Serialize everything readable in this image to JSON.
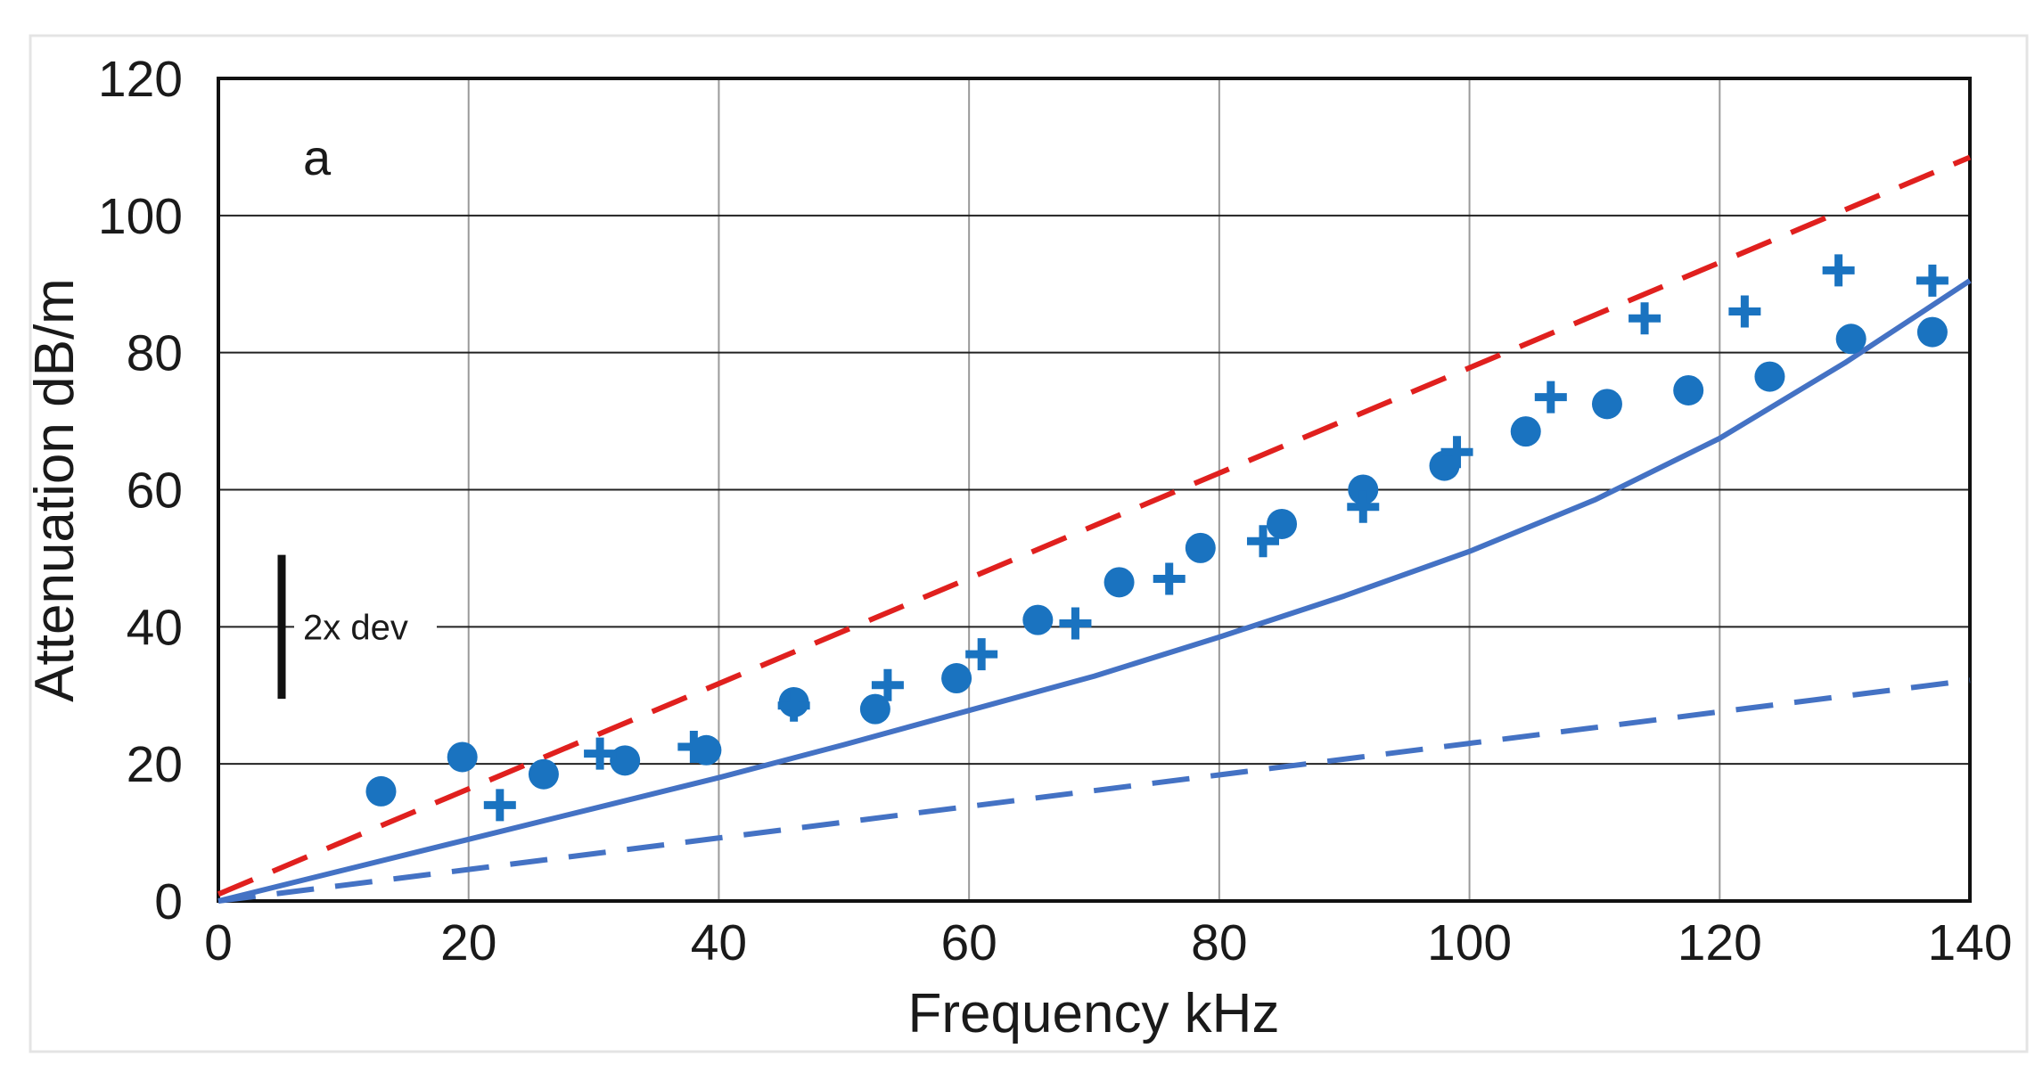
{
  "chart_data": {
    "type": "scatter",
    "panel_label": "a",
    "xlabel": "Frequency  kHz",
    "ylabel": "Attenuation  dB/m",
    "xlim": [
      0,
      140
    ],
    "ylim": [
      0,
      120
    ],
    "xticks": [
      0,
      20,
      40,
      60,
      80,
      100,
      120,
      140
    ],
    "yticks": [
      0,
      20,
      40,
      60,
      80,
      100,
      120
    ],
    "grid": true,
    "annotation": {
      "label": "2x dev",
      "y_center": 40,
      "y_span": 21
    },
    "colors": {
      "markers": "#1a73c0",
      "red_dashed": "#e0201e",
      "blue_line": "#4472c4",
      "grid": "#9a9a9a"
    },
    "series": [
      {
        "name": "circles",
        "kind": "scatter",
        "marker": "circle",
        "x": [
          13,
          19.5,
          26,
          32.5,
          39,
          46,
          52.5,
          59,
          65.5,
          72,
          78.5,
          85,
          91.5,
          98,
          104.5,
          111,
          117.5,
          124,
          130.5,
          137
        ],
        "y": [
          16,
          21,
          18.5,
          20.5,
          22,
          29,
          28,
          32.5,
          41,
          46.5,
          51.5,
          55,
          60,
          63.5,
          68.5,
          72.5,
          74.5,
          76.5,
          82,
          83
        ]
      },
      {
        "name": "crosses",
        "kind": "scatter",
        "marker": "plus",
        "x": [
          22.5,
          30.5,
          38,
          46,
          53.5,
          61,
          68.5,
          76,
          83.5,
          91.5,
          99,
          106.5,
          114,
          122,
          129.5,
          137
        ],
        "y": [
          14,
          21.5,
          22.5,
          28.5,
          31.5,
          36,
          40.5,
          47,
          52.5,
          57.5,
          65.5,
          73.5,
          85,
          86,
          92,
          90.5
        ]
      },
      {
        "name": "red-dashed-line",
        "kind": "line",
        "style": "dashed",
        "x": [
          0,
          140
        ],
        "y": [
          1,
          108.5
        ]
      },
      {
        "name": "blue-solid-line",
        "kind": "line",
        "style": "solid",
        "x": [
          0,
          10,
          20,
          30,
          40,
          50,
          60,
          70,
          80,
          90,
          100,
          110,
          120,
          130,
          140
        ],
        "y": [
          0,
          4.5,
          9,
          13.5,
          18,
          22.8,
          27.8,
          32.8,
          38.5,
          44.5,
          51,
          58.5,
          67.5,
          78.5,
          90.5
        ]
      },
      {
        "name": "blue-dashed-line",
        "kind": "line",
        "style": "dashed",
        "x": [
          0,
          20,
          40,
          60,
          80,
          100,
          120,
          140
        ],
        "y": [
          0,
          4.6,
          9.2,
          13.8,
          18.4,
          23,
          27.6,
          32.2
        ]
      }
    ]
  }
}
